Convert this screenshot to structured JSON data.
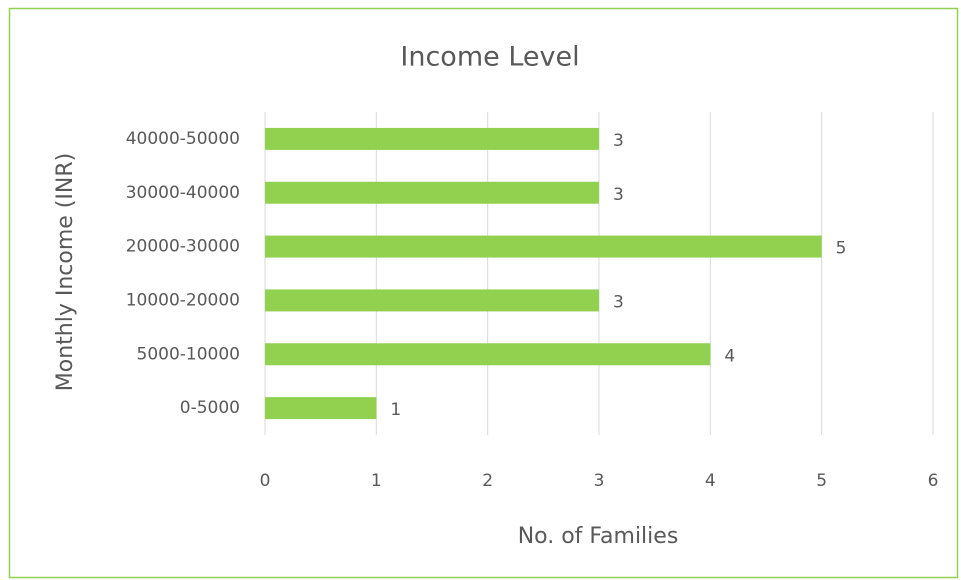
{
  "chart_data": {
    "type": "bar",
    "orientation": "horizontal",
    "title": "Income Level",
    "x_label": "No. of Families",
    "y_label": "Monthly Income (INR)",
    "categories": [
      "0-5000",
      "5000-10000",
      "10000-20000",
      "20000-30000",
      "30000-40000",
      "40000-50000"
    ],
    "values": [
      1,
      4,
      3,
      5,
      3,
      3
    ],
    "color": "#92d050",
    "xlim": [
      0,
      6
    ],
    "xticks": [
      0,
      1,
      2,
      3,
      4,
      5,
      6
    ],
    "grid": true
  }
}
